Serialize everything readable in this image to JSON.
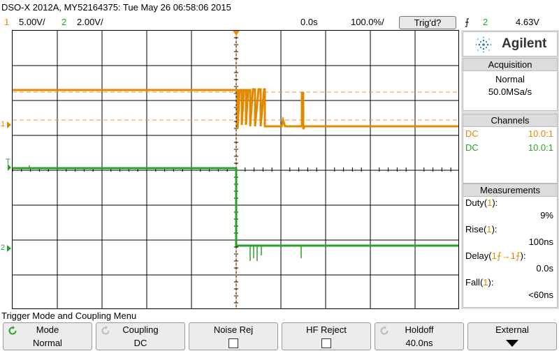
{
  "title": "DSO-X 2012A, MY52164375: Tue May 26 06:58:06 2015",
  "status": {
    "ch1_num": "1",
    "ch1_scale": "5.00V/",
    "ch2_num": "2",
    "ch2_scale": "2.00V/",
    "time_offset": "0.0s",
    "time_scale": "100.0%/",
    "trigger_state": "Trig'd?",
    "trigger_edge_symbol": "⨍",
    "trigger_source": "2",
    "trigger_level": "4.63V"
  },
  "colors": {
    "ch1": "#e08a00",
    "ch2": "#2aa12a",
    "grid": "#000000",
    "ref_dash": "#e89a30",
    "trigger_marker": "#f08a00"
  },
  "markers": {
    "ch1": "1",
    "trigger": "T",
    "ch2": "2"
  },
  "panel": {
    "brand": "Agilent",
    "acquisition_header": "Acquisition",
    "acquisition_mode": "Normal",
    "sample_rate": "50.0MSa/s",
    "channels_header": "Channels",
    "channels": [
      {
        "coupling": "DC",
        "probe": "10.0:1",
        "color": "#e08a00"
      },
      {
        "coupling": "DC",
        "probe": "10.0:1",
        "color": "#2aa12a"
      }
    ],
    "measurements_header": "Measurements",
    "measurements": [
      {
        "name": "Duty",
        "src": "1",
        "value": "9%"
      },
      {
        "name": "Rise",
        "src": "1",
        "value": "100ns"
      },
      {
        "name": "Delay",
        "src": "1⨍→1⨍",
        "value": "0.0s"
      },
      {
        "name": "Fall",
        "src": "1",
        "value": "<60ns"
      }
    ]
  },
  "menu": {
    "title": "Trigger Mode and Coupling Menu",
    "softkeys": [
      {
        "label": "Mode",
        "value": "Normal"
      },
      {
        "label": "Coupling",
        "value": "DC"
      },
      {
        "label": "Noise Rej",
        "value": ""
      },
      {
        "label": "HF Reject",
        "value": ""
      },
      {
        "label": "Holdoff",
        "value": "40.0ns"
      },
      {
        "label": "External",
        "value": ""
      }
    ]
  }
}
